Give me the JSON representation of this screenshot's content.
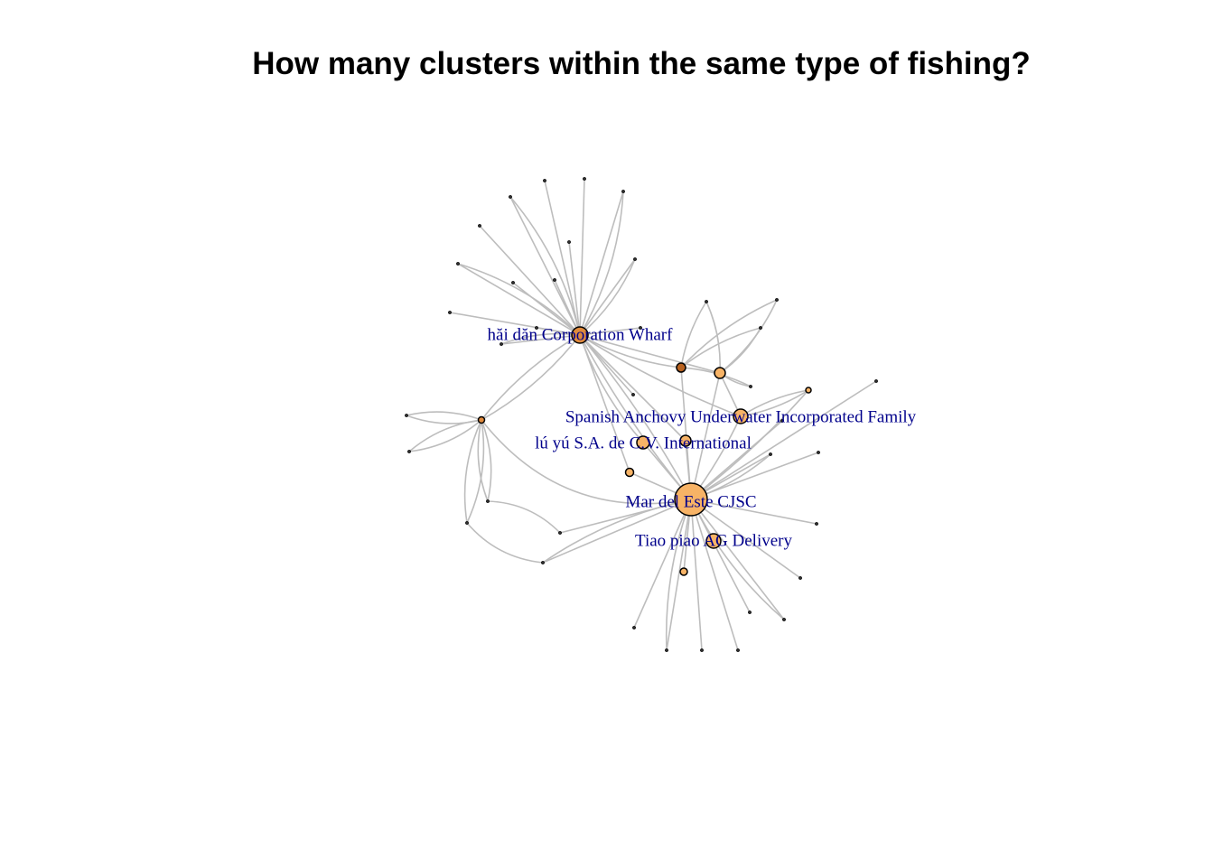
{
  "title": "How many clusters within the same type of fishing?",
  "nodes": [
    {
      "label": "hăi dăn Corporation Wharf"
    },
    {
      "label": "Spanish Anchovy Underwater Incorporated Family"
    },
    {
      "label": "lú yú S.A. de C.V. International"
    },
    {
      "label": "Mar del Este CJSC"
    },
    {
      "label": "Tiao piao  AG Delivery"
    }
  ]
}
